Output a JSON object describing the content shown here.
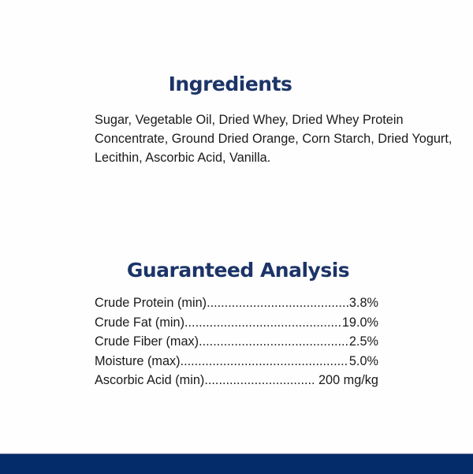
{
  "ingredients": {
    "title": "Ingredients",
    "text": "Sugar, Vegetable Oil, Dried Whey, Dried Whey Protein Concentrate, Ground Dried Orange, Corn Starch, Dried Yogurt, Lecithin, Ascorbic Acid, Vanilla."
  },
  "analysis": {
    "title": "Guaranteed Analysis",
    "rows": [
      {
        "label": "Crude Protein (min)",
        "value": "3.8%"
      },
      {
        "label": "Crude Fat (min)",
        "value": "19.0%"
      },
      {
        "label": "Crude Fiber (max)",
        "value": "2.5%"
      },
      {
        "label": "Moisture (max)",
        "value": "5.0%"
      },
      {
        "label": "Ascorbic Acid (min)",
        "value": " 200 mg/kg"
      }
    ]
  },
  "colors": {
    "title": "#1c3468",
    "footer_bar": "#052c6a"
  }
}
